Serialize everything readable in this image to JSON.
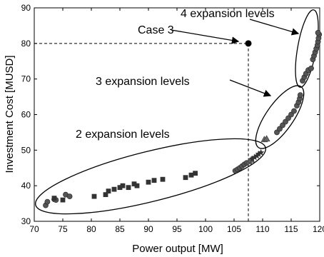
{
  "chart_data": {
    "type": "scatter",
    "xlabel": "Power output [MW]",
    "ylabel": "Investment Cost [MUSD]",
    "xlim": [
      70,
      120
    ],
    "ylim": [
      30,
      90
    ],
    "xticks": [
      70,
      75,
      80,
      85,
      90,
      95,
      100,
      105,
      110,
      115,
      120
    ],
    "yticks": [
      30,
      40,
      50,
      60,
      70,
      80,
      90
    ],
    "grid": false,
    "series": [
      {
        "marker": "circle",
        "color": "#555555",
        "points": [
          [
            72.0,
            34.5
          ],
          [
            72.3,
            35.5
          ],
          [
            73.5,
            36.2
          ],
          [
            75.5,
            37.5
          ],
          [
            76.2,
            37.0
          ],
          [
            73.8,
            36.0
          ],
          [
            105.2,
            44.2
          ],
          [
            105.6,
            44.6
          ],
          [
            106.0,
            45.0
          ],
          [
            106.4,
            45.5
          ],
          [
            106.8,
            46.0
          ],
          [
            107.2,
            46.4
          ],
          [
            112.5,
            55.0
          ],
          [
            113.0,
            56.0
          ],
          [
            113.5,
            57.0
          ],
          [
            114.0,
            58.0
          ],
          [
            114.5,
            59.0
          ],
          [
            115.0,
            60.0
          ],
          [
            115.5,
            61.0
          ],
          [
            116.0,
            62.5
          ],
          [
            116.3,
            63.5
          ],
          [
            116.5,
            64.5
          ],
          [
            116.6,
            65.5
          ],
          [
            117.0,
            69.5
          ],
          [
            117.3,
            70.5
          ],
          [
            117.6,
            71.5
          ],
          [
            118.0,
            72.5
          ],
          [
            118.5,
            73.0
          ],
          [
            118.8,
            75.5
          ],
          [
            119.0,
            76.5
          ],
          [
            119.2,
            77.5
          ],
          [
            119.4,
            78.5
          ],
          [
            119.6,
            79.5
          ],
          [
            119.7,
            80.5
          ],
          [
            119.8,
            81.5
          ],
          [
            119.9,
            82.5
          ],
          [
            119.7,
            83.0
          ]
        ]
      },
      {
        "marker": "square",
        "color": "#333333",
        "points": [
          [
            73.5,
            36.5
          ],
          [
            75.0,
            36.0
          ],
          [
            80.5,
            37.0
          ],
          [
            82.5,
            37.5
          ],
          [
            83.0,
            38.5
          ],
          [
            84.0,
            39.0
          ],
          [
            85.0,
            39.5
          ],
          [
            85.5,
            40.0
          ],
          [
            86.5,
            39.5
          ],
          [
            87.5,
            40.5
          ],
          [
            88.0,
            40.0
          ],
          [
            90.0,
            41.0
          ],
          [
            91.0,
            41.5
          ],
          [
            92.5,
            41.8
          ],
          [
            96.5,
            42.3
          ],
          [
            97.5,
            43.0
          ],
          [
            98.2,
            43.5
          ]
        ]
      },
      {
        "marker": "triangle",
        "color": "#666666",
        "points": [
          [
            107.6,
            46.8
          ],
          [
            108.0,
            47.3
          ],
          [
            110.3,
            53.0
          ],
          [
            110.7,
            53.2
          ]
        ]
      },
      {
        "marker": "star",
        "color": "#333333",
        "points": [
          [
            108.2,
            47.5
          ],
          [
            108.6,
            48.0
          ],
          [
            109.0,
            48.4
          ],
          [
            109.3,
            48.9
          ],
          [
            109.7,
            49.3
          ]
        ]
      },
      {
        "marker": "case",
        "color": "#000000",
        "points": [
          [
            107.5,
            80.0
          ]
        ]
      }
    ],
    "annotations": {
      "case3": "Case 3",
      "level2": "2 expansion levels",
      "level3": "3 expansion levels",
      "level4": "4 expansion levels"
    }
  }
}
